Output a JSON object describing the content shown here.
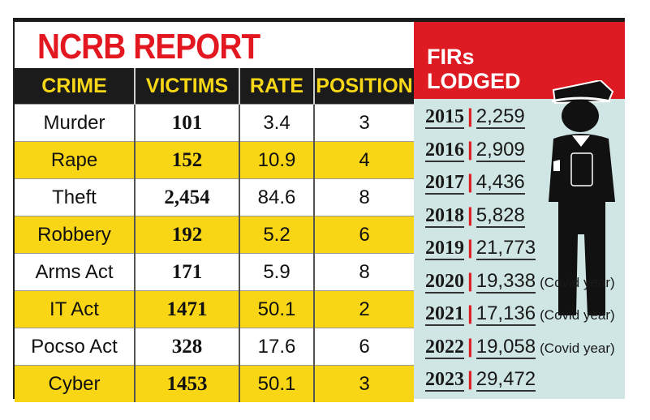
{
  "chart_data": {
    "type": "table",
    "title": "NCRB REPORT",
    "columns": [
      "CRIME",
      "VICTIMS",
      "RATE",
      "POSITION"
    ],
    "rows": [
      [
        "Murder",
        "101",
        "3.4",
        "3"
      ],
      [
        "Rape",
        "152",
        "10.9",
        "4"
      ],
      [
        "Theft",
        "2,454",
        "84.6",
        "8"
      ],
      [
        "Robbery",
        "192",
        "5.2",
        "6"
      ],
      [
        "Arms Act",
        "171",
        "5.9",
        "8"
      ],
      [
        "IT Act",
        "1471",
        "50.1",
        "2"
      ],
      [
        "Pocso Act",
        "328",
        "17.6",
        "6"
      ],
      [
        "Cyber",
        "1453",
        "50.1",
        "3"
      ]
    ],
    "firs": {
      "title_line1": "FIRs",
      "title_line2": "LODGED",
      "items": [
        {
          "year": "2015",
          "value": "2,259",
          "note": ""
        },
        {
          "year": "2016",
          "value": "2,909",
          "note": ""
        },
        {
          "year": "2017",
          "value": "4,436",
          "note": ""
        },
        {
          "year": "2018",
          "value": "5,828",
          "note": ""
        },
        {
          "year": "2019",
          "value": "21,773",
          "note": ""
        },
        {
          "year": "2020",
          "value": "19,338",
          "note": "(Covid year)"
        },
        {
          "year": "2021",
          "value": "17,136",
          "note": "(Covid year)"
        },
        {
          "year": "2022",
          "value": "19,058",
          "note": "(Covid year)"
        },
        {
          "year": "2023",
          "value": "29,472",
          "note": ""
        }
      ]
    },
    "colors": {
      "red": "#de1b22",
      "yellow": "#f9d615",
      "black": "#1b1b1b",
      "teal": "#cfe6e4"
    }
  }
}
